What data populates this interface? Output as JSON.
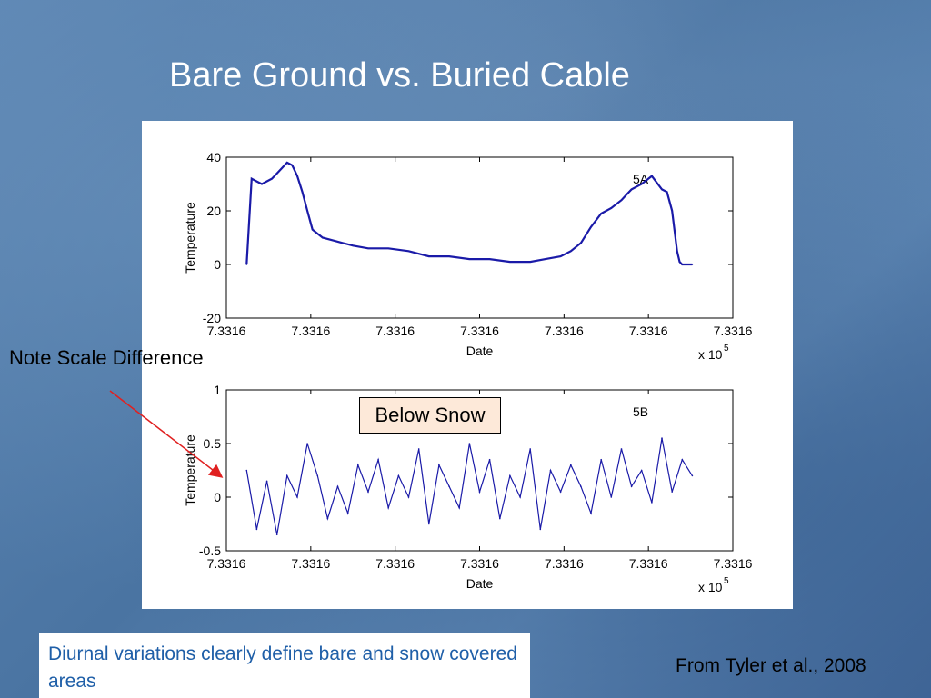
{
  "slide": {
    "title": "Bare Ground vs. Buried Cable",
    "note": "Note Scale Difference",
    "callout": "Below Snow",
    "caption": "Diurnal variations clearly define bare and snow covered areas",
    "source": "From Tyler et al., 2008"
  },
  "colors": {
    "line": "#1a1aa8",
    "arrow": "#e02020"
  },
  "chart_data": [
    {
      "type": "line",
      "panel_label": "5A",
      "xlabel": "Date",
      "ylabel": "Temperature",
      "x_tick_labels": [
        "7.3316",
        "7.3316",
        "7.3316",
        "7.3316",
        "7.3316",
        "7.3316",
        "7.3316"
      ],
      "x_exponent": "x 10",
      "x_exponent_power": "5",
      "ylim": [
        -20,
        40
      ],
      "y_ticks": [
        -20,
        0,
        20,
        40
      ],
      "grid": false,
      "series": [
        {
          "x": [
            0.04,
            0.05,
            0.06,
            0.07,
            0.09,
            0.1,
            0.11,
            0.12,
            0.13,
            0.14,
            0.15,
            0.16,
            0.17,
            0.19,
            0.21,
            0.23,
            0.25,
            0.28,
            0.32,
            0.36,
            0.4,
            0.44,
            0.48,
            0.52,
            0.56,
            0.6,
            0.63,
            0.66,
            0.68,
            0.7,
            0.72,
            0.74,
            0.76,
            0.78,
            0.79,
            0.8,
            0.82,
            0.84,
            0.86,
            0.87,
            0.88,
            0.89,
            0.895,
            0.9,
            0.91,
            0.92
          ],
          "y": [
            0,
            32,
            31,
            30,
            32,
            34,
            36,
            38,
            37,
            33,
            27,
            20,
            13,
            10,
            9,
            8,
            7,
            6,
            6,
            5,
            3,
            3,
            2,
            2,
            1,
            1,
            2,
            3,
            5,
            8,
            14,
            19,
            21,
            24,
            26,
            28,
            30,
            33,
            28,
            27,
            20,
            5,
            1,
            0,
            0,
            0
          ]
        }
      ]
    },
    {
      "type": "line",
      "panel_label": "5B",
      "xlabel": "Date",
      "ylabel": "Temperature",
      "x_tick_labels": [
        "7.3316",
        "7.3316",
        "7.3316",
        "7.3316",
        "7.3316",
        "7.3316",
        "7.3316"
      ],
      "x_exponent": "x 10",
      "x_exponent_power": "5",
      "ylim": [
        -0.5,
        1
      ],
      "y_ticks": [
        -0.5,
        0,
        0.5,
        1
      ],
      "grid": false,
      "series": [
        {
          "x": [
            0.04,
            0.06,
            0.08,
            0.1,
            0.12,
            0.14,
            0.16,
            0.18,
            0.2,
            0.22,
            0.24,
            0.26,
            0.28,
            0.3,
            0.32,
            0.34,
            0.36,
            0.38,
            0.4,
            0.42,
            0.44,
            0.46,
            0.48,
            0.5,
            0.52,
            0.54,
            0.56,
            0.58,
            0.6,
            0.62,
            0.64,
            0.66,
            0.68,
            0.7,
            0.72,
            0.74,
            0.76,
            0.78,
            0.8,
            0.82,
            0.84,
            0.86,
            0.88,
            0.9,
            0.92
          ],
          "y": [
            0.25,
            -0.3,
            0.15,
            -0.35,
            0.2,
            0.0,
            0.5,
            0.2,
            -0.2,
            0.1,
            -0.15,
            0.3,
            0.05,
            0.35,
            -0.1,
            0.2,
            0.0,
            0.45,
            -0.25,
            0.3,
            0.1,
            -0.1,
            0.5,
            0.05,
            0.35,
            -0.2,
            0.2,
            0.0,
            0.45,
            -0.3,
            0.25,
            0.05,
            0.3,
            0.1,
            -0.15,
            0.35,
            0.0,
            0.45,
            0.1,
            0.25,
            -0.05,
            0.55,
            0.05,
            0.35,
            0.2
          ]
        }
      ]
    }
  ]
}
